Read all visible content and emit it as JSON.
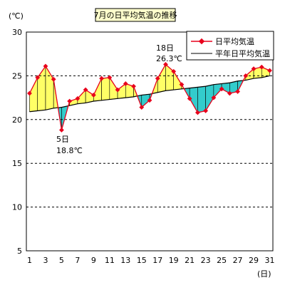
{
  "chart_data": {
    "type": "line",
    "title": "7月の日平均気温の推移",
    "y_unit": "(℃)",
    "x_unit": "(日)",
    "ylim": [
      5,
      30
    ],
    "y_ticks": [
      5,
      10,
      15,
      20,
      25,
      30
    ],
    "x_ticks": [
      1,
      3,
      5,
      7,
      9,
      11,
      13,
      15,
      17,
      19,
      21,
      23,
      25,
      27,
      29,
      31
    ],
    "grid": "horizontal-dashed",
    "legend_position": "top-right",
    "series": [
      {
        "name": "日平均気温",
        "color": "#e8001c",
        "x": [
          1,
          2,
          3,
          4,
          5,
          6,
          7,
          8,
          9,
          10,
          11,
          12,
          13,
          14,
          15,
          16,
          17,
          18,
          19,
          20,
          21,
          22,
          23,
          24,
          25,
          26,
          27,
          28,
          29,
          30,
          31
        ],
        "values": [
          23.0,
          24.8,
          26.1,
          24.6,
          18.8,
          22.1,
          22.4,
          23.4,
          22.8,
          24.7,
          24.8,
          23.4,
          24.1,
          23.8,
          21.4,
          22.2,
          24.7,
          26.3,
          25.5,
          24.0,
          22.4,
          20.8,
          21.0,
          22.5,
          23.5,
          23.0,
          23.2,
          25.0,
          25.8,
          26.0,
          25.6
        ]
      },
      {
        "name": "平年日平均気温",
        "color": "#000000",
        "x": [
          1,
          2,
          3,
          4,
          5,
          6,
          7,
          8,
          9,
          10,
          11,
          12,
          13,
          14,
          15,
          16,
          17,
          18,
          19,
          20,
          21,
          22,
          23,
          24,
          25,
          26,
          27,
          28,
          29,
          30,
          31
        ],
        "values": [
          20.9,
          21.0,
          21.1,
          21.3,
          21.4,
          21.6,
          21.8,
          21.9,
          22.1,
          22.2,
          22.3,
          22.4,
          22.5,
          22.6,
          22.8,
          22.9,
          23.1,
          23.3,
          23.4,
          23.5,
          23.6,
          23.7,
          23.8,
          24.0,
          24.1,
          24.2,
          24.4,
          24.5,
          24.7,
          24.8,
          25.0
        ]
      }
    ],
    "fill_above_color": "#ffff66",
    "fill_below_color": "#33cccc",
    "annotations": [
      {
        "day": "5日",
        "value": "18.8℃",
        "x": 5,
        "y": 18.8
      },
      {
        "day": "18日",
        "value": "26.3℃",
        "x": 18,
        "y": 26.3
      }
    ]
  }
}
